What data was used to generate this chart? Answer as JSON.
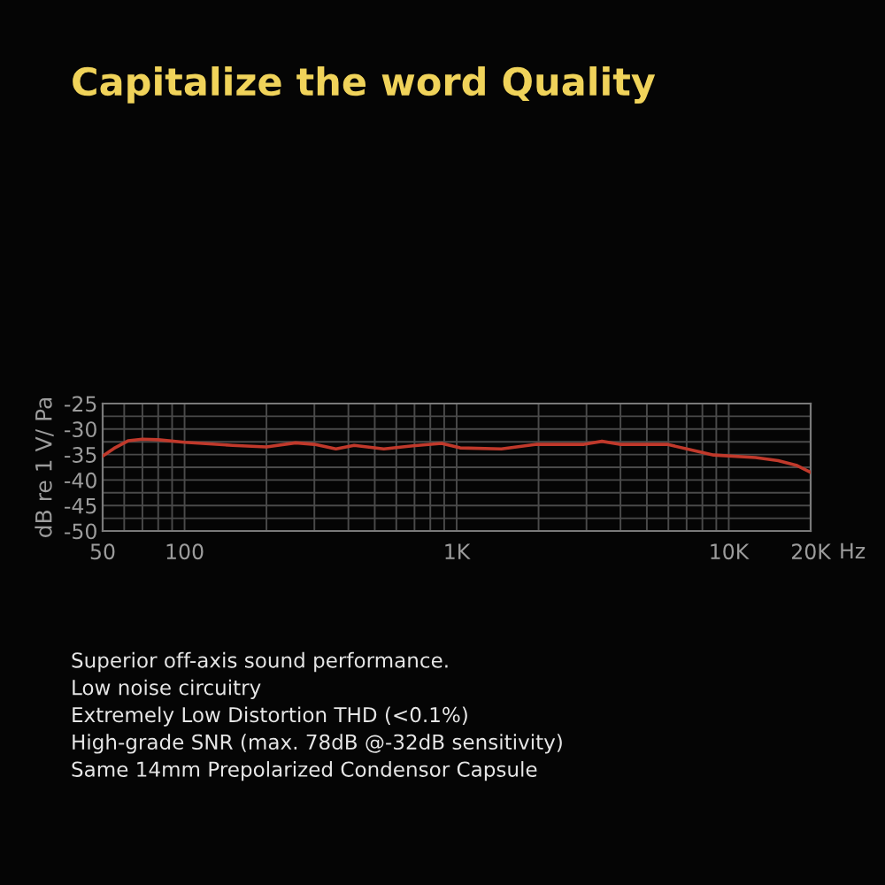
{
  "chart_data": {
    "type": "line",
    "title": "Capitalize the word Quality",
    "xlabel": "Hz",
    "ylabel": "dB re 1 V/ Pa",
    "series": [
      {
        "color": "#c0392b",
        "x": [
          50,
          55,
          62,
          70,
          80,
          100,
          150,
          200,
          256,
          300,
          360,
          420,
          540,
          690,
          880,
          1030,
          1460,
          1970,
          2940,
          3420,
          3970,
          5930,
          8800,
          12550,
          15200,
          17700,
          20000
        ],
        "values": [
          -35.3,
          -33.8,
          -32.3,
          -32.0,
          -32.1,
          -32.6,
          -33.2,
          -33.5,
          -32.7,
          -33.0,
          -33.9,
          -33.2,
          -33.9,
          -33.3,
          -32.8,
          -33.7,
          -33.9,
          -33.0,
          -33.0,
          -32.4,
          -33.0,
          -33.0,
          -35.1,
          -35.6,
          -36.2,
          -37.1,
          -38.5
        ]
      }
    ],
    "log": "x",
    "grid": true,
    "xlim": [
      50,
      20000
    ],
    "xticks": [
      50,
      {
        "value": 60,
        "label": null
      },
      {
        "value": 70,
        "label": null
      },
      {
        "value": 80,
        "label": null
      },
      {
        "value": 90,
        "label": null
      },
      100,
      {
        "value": 200,
        "label": null
      },
      {
        "value": 300,
        "label": null
      },
      {
        "value": 400,
        "label": null
      },
      {
        "value": 500,
        "label": null
      },
      {
        "value": 600,
        "label": null
      },
      {
        "value": 700,
        "label": null
      },
      {
        "value": 800,
        "label": null
      },
      {
        "value": 900,
        "label": null
      },
      {
        "value": 1000,
        "label": "1K"
      },
      {
        "value": 2000,
        "label": null
      },
      {
        "value": 3000,
        "label": null
      },
      {
        "value": 4000,
        "label": null
      },
      {
        "value": 5000,
        "label": null
      },
      {
        "value": 6000,
        "label": null
      },
      {
        "value": 7000,
        "label": null
      },
      {
        "value": 8000,
        "label": null
      },
      {
        "value": 9000,
        "label": null
      },
      {
        "value": 10000,
        "label": "10K"
      },
      {
        "value": 20000,
        "label": "20K"
      }
    ],
    "ylim": [
      -50,
      -25
    ],
    "yticks": [
      -50,
      {
        "value": -47.5,
        "label": null
      },
      -45,
      {
        "value": -42.5,
        "label": null
      },
      -40,
      {
        "value": -37.5,
        "label": null
      },
      -35,
      {
        "value": -32.5,
        "label": null
      },
      -30,
      {
        "value": -27.5,
        "label": null
      },
      -25
    ],
    "line_style": "solid",
    "annotations": [
      "Superior off-axis sound performance.",
      "Low noise circuitry",
      "Extremely Low Distortion THD (<0.1%)",
      "High-grade SNR (max. 78dB @-32dB sensitivity)",
      "Same 14mm Prepolarized Condensor Capsule"
    ]
  }
}
